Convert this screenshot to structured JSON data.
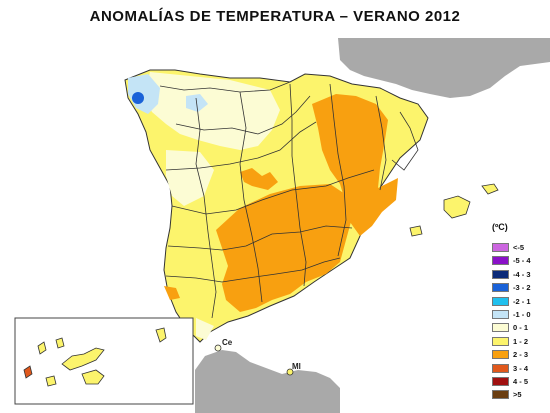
{
  "map": {
    "title": "ANOMALÍAS DE TEMPERATURA – VERANO 2012",
    "unit": "(ºC)",
    "place_labels": [
      {
        "id": "ceuta",
        "label": "Ce"
      },
      {
        "id": "melilla",
        "label": "Ml"
      }
    ],
    "legend": [
      {
        "label": "<-5",
        "color": "#cc66e0"
      },
      {
        "label": "-5 - 4",
        "color": "#8a10c8"
      },
      {
        "label": "-4 - 3",
        "color": "#0b2a78"
      },
      {
        "label": "-3 - 2",
        "color": "#1a62d8"
      },
      {
        "label": "-2 - 1",
        "color": "#20c0ee"
      },
      {
        "label": "-1 - 0",
        "color": "#c4e4f6"
      },
      {
        "label": "0 - 1",
        "color": "#fcfcd4"
      },
      {
        "label": "1 - 2",
        "color": "#fcf46c"
      },
      {
        "label": "2 - 3",
        "color": "#f8a010"
      },
      {
        "label": "3 - 4",
        "color": "#e0581c"
      },
      {
        "label": "4 - 5",
        "color": "#a01010"
      },
      {
        "label": ">5",
        "color": "#6a3e12"
      }
    ]
  },
  "colors": {
    "land_outside": "#a9a9a9",
    "province_border": "#333333"
  }
}
